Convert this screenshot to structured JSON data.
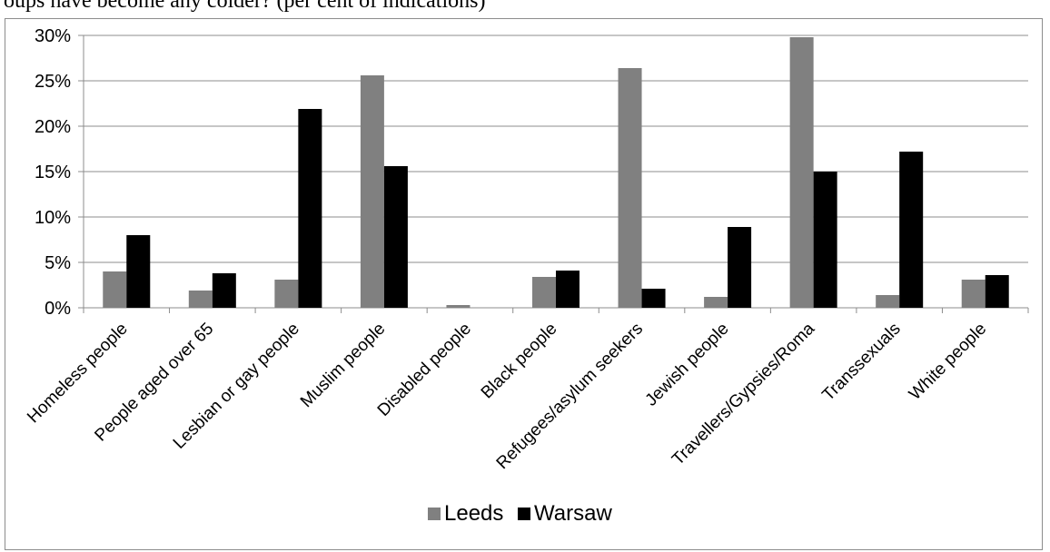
{
  "header_text": "oups have become any colder? (per cent of indications)",
  "chart_data": {
    "type": "bar",
    "categories": [
      "Homeless people",
      "People aged over 65",
      "Lesbian or gay people",
      "Muslim people",
      "Disabled people",
      "Black people",
      "Refugees/asylum seekers",
      "Jewish people",
      "Travellers/Gypsies/Roma",
      "Transsexuals",
      "White people"
    ],
    "series": [
      {
        "name": "Leeds",
        "color": "#808080",
        "values": [
          4.0,
          1.9,
          3.1,
          25.6,
          0.3,
          3.4,
          26.4,
          1.2,
          29.8,
          1.4,
          3.1
        ]
      },
      {
        "name": "Warsaw",
        "color": "#000000",
        "values": [
          8.0,
          3.8,
          21.9,
          15.6,
          0.0,
          4.1,
          2.1,
          8.9,
          15.0,
          17.2,
          3.6
        ]
      }
    ],
    "y_ticks": [
      "0%",
      "5%",
      "10%",
      "15%",
      "20%",
      "25%",
      "30%"
    ],
    "ylim": [
      0,
      30
    ],
    "grid": true,
    "legend_position": "bottom",
    "xlabel": "",
    "ylabel": ""
  }
}
